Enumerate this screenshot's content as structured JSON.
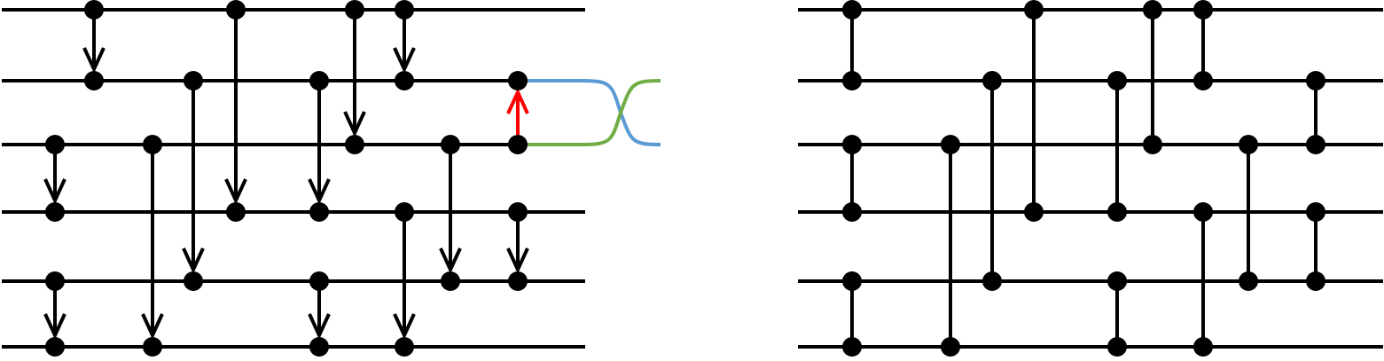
{
  "colors": {
    "wire": "#000000",
    "node": "#000000",
    "highlight_arrow": "#ff0000",
    "swap_blue": "#5b9bd5",
    "swap_green": "#70ad47"
  },
  "left_network": {
    "wire_count": 6,
    "comparators": [
      {
        "from": 0,
        "to": 1,
        "step": 2,
        "direction": "down"
      },
      {
        "from": 1,
        "to": 4,
        "step": 4,
        "direction": "down"
      },
      {
        "from": 0,
        "to": 3,
        "step": 5,
        "direction": "down"
      },
      {
        "from": 1,
        "to": 3,
        "step": 6,
        "direction": "down"
      },
      {
        "from": 0,
        "to": 2,
        "step": 7,
        "direction": "down"
      },
      {
        "from": 0,
        "to": 1,
        "step": 8,
        "direction": "down"
      },
      {
        "from": 2,
        "to": 3,
        "step": 1,
        "direction": "down"
      },
      {
        "from": 4,
        "to": 5,
        "step": 1,
        "direction": "down"
      },
      {
        "from": 2,
        "to": 5,
        "step": 3,
        "direction": "down"
      },
      {
        "from": 4,
        "to": 5,
        "step": 6,
        "direction": "down"
      },
      {
        "from": 3,
        "to": 5,
        "step": 8,
        "direction": "down"
      },
      {
        "from": 2,
        "to": 4,
        "step": 9,
        "direction": "down"
      },
      {
        "from": 3,
        "to": 4,
        "step": 10,
        "direction": "down"
      },
      {
        "from": 2,
        "to": 1,
        "step": 10,
        "direction": "up",
        "highlight": true
      }
    ],
    "swap": {
      "wires": [
        1,
        2
      ]
    }
  },
  "right_network": {
    "wire_count": 6,
    "comparators": [
      {
        "from": 0,
        "to": 1,
        "step": 1
      },
      {
        "from": 2,
        "to": 3,
        "step": 1
      },
      {
        "from": 4,
        "to": 5,
        "step": 1
      },
      {
        "from": 2,
        "to": 5,
        "step": 2
      },
      {
        "from": 1,
        "to": 4,
        "step": 3
      },
      {
        "from": 0,
        "to": 3,
        "step": 4
      },
      {
        "from": 1,
        "to": 3,
        "step": 5
      },
      {
        "from": 4,
        "to": 5,
        "step": 5
      },
      {
        "from": 0,
        "to": 2,
        "step": 6
      },
      {
        "from": 0,
        "to": 1,
        "step": 7
      },
      {
        "from": 3,
        "to": 5,
        "step": 7
      },
      {
        "from": 2,
        "to": 4,
        "step": 8
      },
      {
        "from": 1,
        "to": 2,
        "step": 9
      },
      {
        "from": 3,
        "to": 4,
        "step": 9
      }
    ]
  }
}
